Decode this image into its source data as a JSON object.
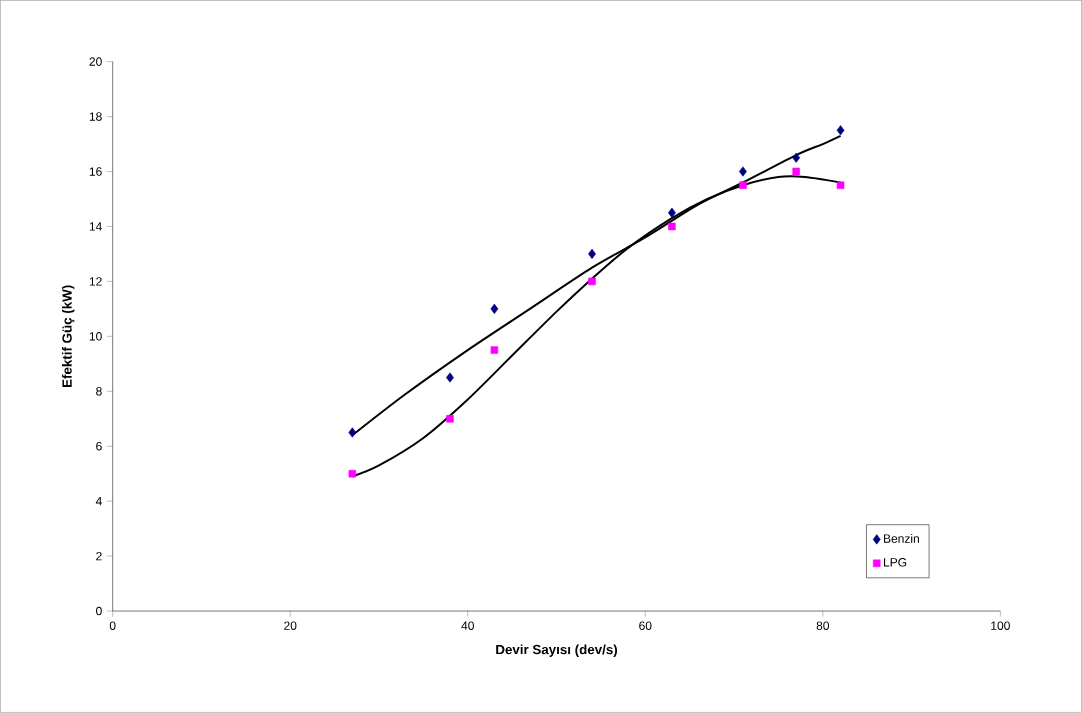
{
  "chart_data": {
    "type": "scatter",
    "xlabel": "Devir Sayısı (dev/s)",
    "ylabel": "Efektif Güç (kW)",
    "xlim": [
      0,
      100
    ],
    "xticks": [
      0,
      20,
      40,
      60,
      80,
      100
    ],
    "ylim": [
      0,
      20
    ],
    "yticks": [
      0,
      2,
      4,
      6,
      8,
      10,
      12,
      14,
      16,
      18,
      20
    ],
    "legend": "bottom right",
    "grid": false,
    "series": [
      {
        "name": "Benzin",
        "marker": "diamond",
        "color": "#000080",
        "x": [
          27,
          38,
          43,
          54,
          63,
          71,
          77,
          82
        ],
        "values": [
          6.5,
          8.5,
          11,
          13,
          14.5,
          16,
          16.5,
          17.5
        ]
      },
      {
        "name": "LPG",
        "marker": "square",
        "color": "#ff00ff",
        "x": [
          27,
          38,
          43,
          54,
          63,
          71,
          77,
          82
        ],
        "values": [
          5,
          7,
          9.5,
          12,
          14,
          15.5,
          16,
          15.5
        ]
      },
      {
        "type": "line",
        "marker": "none",
        "color": "#000000",
        "x": [
          27,
          33,
          40,
          47,
          54,
          60,
          66,
          71,
          77,
          80,
          82
        ],
        "values": [
          6.4,
          7.9,
          9.5,
          11.0,
          12.5,
          13.6,
          14.8,
          15.6,
          16.6,
          17.0,
          17.3
        ]
      },
      {
        "type": "line",
        "marker": "none",
        "color": "#000000",
        "x": [
          27,
          30,
          35,
          40,
          45,
          50,
          54,
          58,
          63,
          67,
          71,
          75,
          78,
          82
        ],
        "values": [
          4.9,
          5.3,
          6.3,
          7.7,
          9.3,
          10.9,
          12.1,
          13.2,
          14.3,
          15.0,
          15.5,
          15.8,
          15.8,
          15.6
        ]
      }
    ]
  }
}
